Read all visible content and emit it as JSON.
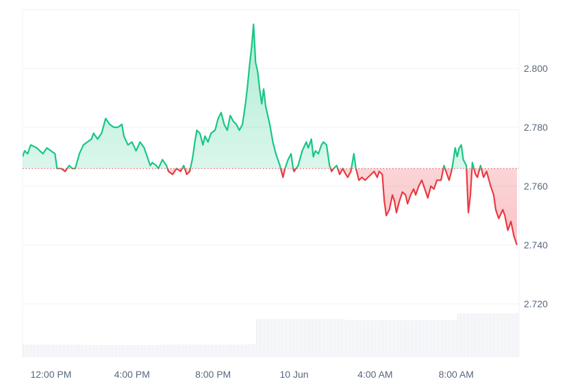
{
  "chart_data": {
    "type": "area",
    "baseline": 2.766,
    "colors": {
      "up": "#16c784",
      "down": "#ea3943",
      "grid": "#eff2f5",
      "baseline": "#ea3943",
      "volume": "#e9ecf1"
    },
    "ylim": [
      2.7,
      2.82
    ],
    "y_ticks": [
      "2.720",
      "2.740",
      "2.760",
      "2.780",
      "2.800"
    ],
    "y_tick_values": [
      2.72,
      2.74,
      2.76,
      2.78,
      2.8
    ],
    "x_ticks": [
      "12:00 PM",
      "4:00 PM",
      "8:00 PM",
      "10 Jun",
      "4:00 AM",
      "8:00 AM"
    ],
    "x_tick_hours": [
      12,
      16,
      20,
      24,
      28,
      32
    ],
    "x_range_hours": [
      10.6,
      35.1
    ],
    "series": [
      {
        "values": [
          [
            10.6,
            2.77
          ],
          [
            10.7,
            2.772
          ],
          [
            10.85,
            2.771
          ],
          [
            11.0,
            2.774
          ],
          [
            11.3,
            2.773
          ],
          [
            11.6,
            2.771
          ],
          [
            11.8,
            2.773
          ],
          [
            12.0,
            2.772
          ],
          [
            12.2,
            2.771
          ],
          [
            12.3,
            2.766
          ],
          [
            12.5,
            2.766
          ],
          [
            12.7,
            2.765
          ],
          [
            12.9,
            2.767
          ],
          [
            13.05,
            2.766
          ],
          [
            13.2,
            2.766
          ],
          [
            13.4,
            2.771
          ],
          [
            13.6,
            2.774
          ],
          [
            13.8,
            2.775
          ],
          [
            14.0,
            2.776
          ],
          [
            14.1,
            2.778
          ],
          [
            14.3,
            2.776
          ],
          [
            14.5,
            2.778
          ],
          [
            14.7,
            2.783
          ],
          [
            14.9,
            2.781
          ],
          [
            15.1,
            2.78
          ],
          [
            15.3,
            2.78
          ],
          [
            15.5,
            2.781
          ],
          [
            15.6,
            2.777
          ],
          [
            15.8,
            2.774
          ],
          [
            16.0,
            2.775
          ],
          [
            16.2,
            2.772
          ],
          [
            16.4,
            2.775
          ],
          [
            16.6,
            2.773
          ],
          [
            16.8,
            2.769
          ],
          [
            16.9,
            2.767
          ],
          [
            17.0,
            2.768
          ],
          [
            17.2,
            2.767
          ],
          [
            17.3,
            2.766
          ],
          [
            17.5,
            2.769
          ],
          [
            17.7,
            2.767
          ],
          [
            17.8,
            2.765
          ],
          [
            18.0,
            2.764
          ],
          [
            18.2,
            2.766
          ],
          [
            18.4,
            2.765
          ],
          [
            18.55,
            2.767
          ],
          [
            18.7,
            2.764
          ],
          [
            18.85,
            2.765
          ],
          [
            19.0,
            2.77
          ],
          [
            19.1,
            2.775
          ],
          [
            19.2,
            2.779
          ],
          [
            19.35,
            2.778
          ],
          [
            19.5,
            2.774
          ],
          [
            19.6,
            2.777
          ],
          [
            19.75,
            2.775
          ],
          [
            19.9,
            2.778
          ],
          [
            20.1,
            2.779
          ],
          [
            20.25,
            2.783
          ],
          [
            20.4,
            2.785
          ],
          [
            20.55,
            2.781
          ],
          [
            20.7,
            2.779
          ],
          [
            20.85,
            2.784
          ],
          [
            21.0,
            2.782
          ],
          [
            21.15,
            2.781
          ],
          [
            21.3,
            2.779
          ],
          [
            21.45,
            2.781
          ],
          [
            21.6,
            2.788
          ],
          [
            21.7,
            2.794
          ],
          [
            21.8,
            2.801
          ],
          [
            21.9,
            2.807
          ],
          [
            22.0,
            2.815
          ],
          [
            22.1,
            2.802
          ],
          [
            22.2,
            2.799
          ],
          [
            22.3,
            2.793
          ],
          [
            22.4,
            2.788
          ],
          [
            22.5,
            2.793
          ],
          [
            22.6,
            2.787
          ],
          [
            22.8,
            2.781
          ],
          [
            22.95,
            2.775
          ],
          [
            23.1,
            2.771
          ],
          [
            23.3,
            2.767
          ],
          [
            23.45,
            2.763
          ],
          [
            23.55,
            2.766
          ],
          [
            23.7,
            2.769
          ],
          [
            23.85,
            2.771
          ],
          [
            23.95,
            2.766
          ],
          [
            24.0,
            2.765
          ],
          [
            24.2,
            2.767
          ],
          [
            24.4,
            2.772
          ],
          [
            24.6,
            2.775
          ],
          [
            24.7,
            2.773
          ],
          [
            24.85,
            2.776
          ],
          [
            24.95,
            2.77
          ],
          [
            25.05,
            2.772
          ],
          [
            25.2,
            2.771
          ],
          [
            25.35,
            2.774
          ],
          [
            25.45,
            2.775
          ],
          [
            25.6,
            2.774
          ],
          [
            25.75,
            2.767
          ],
          [
            25.85,
            2.765
          ],
          [
            25.95,
            2.766
          ],
          [
            26.1,
            2.767
          ],
          [
            26.25,
            2.764
          ],
          [
            26.4,
            2.766
          ],
          [
            26.55,
            2.764
          ],
          [
            26.65,
            2.763
          ],
          [
            26.8,
            2.765
          ],
          [
            26.95,
            2.771
          ],
          [
            27.05,
            2.766
          ],
          [
            27.2,
            2.762
          ],
          [
            27.35,
            2.763
          ],
          [
            27.5,
            2.762
          ],
          [
            27.65,
            2.763
          ],
          [
            27.8,
            2.764
          ],
          [
            27.95,
            2.765
          ],
          [
            28.1,
            2.763
          ],
          [
            28.2,
            2.765
          ],
          [
            28.35,
            2.764
          ],
          [
            28.45,
            2.755
          ],
          [
            28.55,
            2.75
          ],
          [
            28.7,
            2.752
          ],
          [
            28.85,
            2.757
          ],
          [
            28.95,
            2.755
          ],
          [
            29.05,
            2.751
          ],
          [
            29.2,
            2.755
          ],
          [
            29.35,
            2.758
          ],
          [
            29.5,
            2.757
          ],
          [
            29.6,
            2.754
          ],
          [
            29.75,
            2.757
          ],
          [
            29.9,
            2.759
          ],
          [
            30.0,
            2.757
          ],
          [
            30.15,
            2.76
          ],
          [
            30.3,
            2.762
          ],
          [
            30.5,
            2.758
          ],
          [
            30.6,
            2.756
          ],
          [
            30.75,
            2.76
          ],
          [
            30.9,
            2.759
          ],
          [
            31.05,
            2.762
          ],
          [
            31.25,
            2.762
          ],
          [
            31.4,
            2.767
          ],
          [
            31.55,
            2.764
          ],
          [
            31.65,
            2.762
          ],
          [
            31.8,
            2.766
          ],
          [
            31.95,
            2.773
          ],
          [
            32.05,
            2.77
          ],
          [
            32.15,
            2.773
          ],
          [
            32.25,
            2.774
          ],
          [
            32.35,
            2.769
          ],
          [
            32.5,
            2.767
          ],
          [
            32.6,
            2.751
          ],
          [
            32.7,
            2.757
          ],
          [
            32.8,
            2.768
          ],
          [
            32.95,
            2.764
          ],
          [
            33.05,
            2.763
          ],
          [
            33.2,
            2.767
          ],
          [
            33.35,
            2.763
          ],
          [
            33.5,
            2.765
          ],
          [
            33.7,
            2.76
          ],
          [
            33.85,
            2.757
          ],
          [
            33.95,
            2.752
          ],
          [
            34.1,
            2.749
          ],
          [
            34.3,
            2.752
          ],
          [
            34.4,
            2.75
          ],
          [
            34.55,
            2.745
          ],
          [
            34.7,
            2.748
          ],
          [
            34.85,
            2.743
          ],
          [
            35.0,
            2.74
          ]
        ]
      }
    ],
    "volume": [
      [
        10.6,
        0.29
      ],
      [
        13.5,
        0.29
      ],
      [
        13.5,
        0.28
      ],
      [
        17.5,
        0.28
      ],
      [
        17.5,
        0.29
      ],
      [
        21.6,
        0.29
      ],
      [
        21.6,
        0.3
      ],
      [
        22.1,
        0.3
      ],
      [
        22.1,
        0.87
      ],
      [
        26.5,
        0.87
      ],
      [
        26.5,
        0.85
      ],
      [
        32.0,
        0.85
      ],
      [
        32.0,
        1.0
      ],
      [
        35.1,
        1.0
      ]
    ]
  }
}
